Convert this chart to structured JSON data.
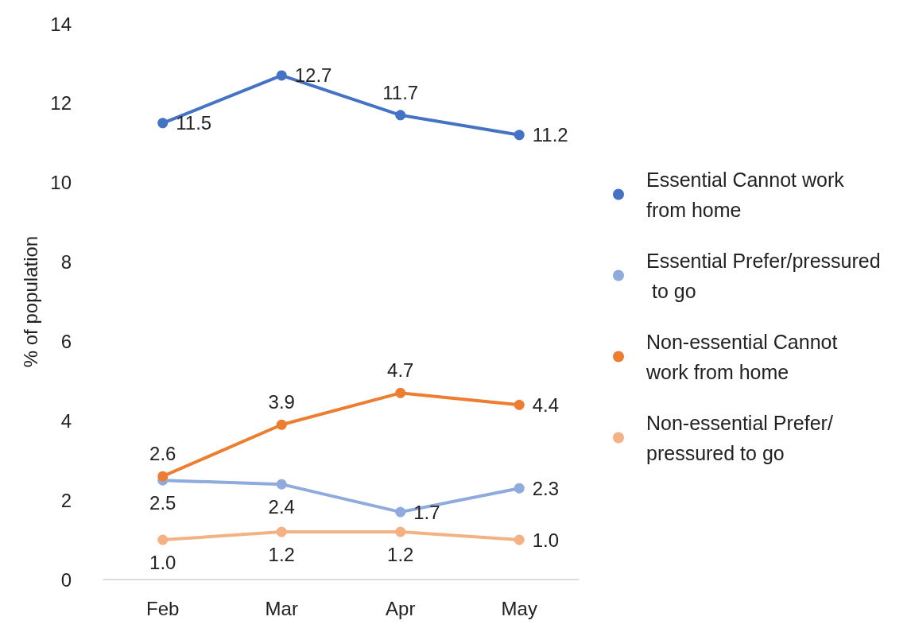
{
  "chart_data": {
    "type": "line",
    "ylabel": "% of population",
    "categories": [
      "Feb",
      "Mar",
      "Apr",
      "May"
    ],
    "series": [
      {
        "name": "Essential Cannot work from home",
        "color": "#4472c4",
        "values": [
          11.5,
          12.7,
          11.7,
          11.2
        ],
        "value_labels": [
          "11.5",
          "12.7",
          "11.7",
          "11.2"
        ]
      },
      {
        "name": "Essential Prefer/pressured to go",
        "color": "#8faadc",
        "values": [
          2.5,
          2.4,
          1.7,
          2.3
        ],
        "value_labels": [
          "2.5",
          "2.4",
          "1.7",
          "2.3"
        ]
      },
      {
        "name": "Non-essential Cannot work from home",
        "color": "#ed7d31",
        "values": [
          2.6,
          3.9,
          4.7,
          4.4
        ],
        "value_labels": [
          "2.6",
          "3.9",
          "4.7",
          "4.4"
        ]
      },
      {
        "name": "Non-essential Prefer/pressured to go",
        "color": "#f4b183",
        "values": [
          1.0,
          1.2,
          1.2,
          1.0
        ],
        "value_labels": [
          "1.0",
          "1.2",
          "1.2",
          "1.0"
        ]
      }
    ],
    "ylim": [
      0,
      14
    ],
    "yticks": [
      0,
      2,
      4,
      6,
      8,
      10,
      12,
      14
    ],
    "grid": false,
    "legend": "right",
    "marker": "circle",
    "line_style": "solid"
  }
}
